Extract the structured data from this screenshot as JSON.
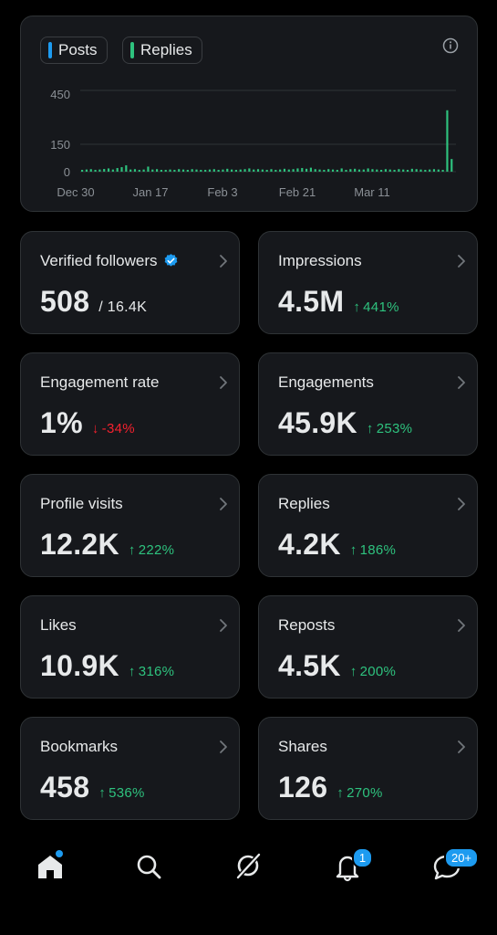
{
  "chart": {
    "legend": [
      {
        "label": "Posts",
        "color": "#1d9bf0"
      },
      {
        "label": "Replies",
        "color": "#2ec27e"
      }
    ],
    "y_ticks": [
      "450",
      "150",
      "0"
    ],
    "x_ticks": [
      "Dec 30",
      "Jan 17",
      "Feb 3",
      "Feb 21",
      "Mar 11"
    ]
  },
  "chart_data": {
    "type": "bar",
    "ylim": [
      0,
      450
    ],
    "grid": true,
    "series": [
      {
        "name": "Posts",
        "values": [
          0,
          0,
          0,
          0,
          0,
          0,
          0,
          0,
          0,
          0,
          0,
          0,
          0,
          0,
          0,
          0,
          0,
          0,
          0,
          0,
          0,
          0,
          0,
          0,
          0,
          0,
          0,
          0,
          0,
          0,
          0,
          0,
          0,
          0,
          0,
          0,
          0,
          0,
          0,
          0,
          0,
          0,
          0,
          0,
          0,
          0,
          0,
          0,
          0,
          0,
          0,
          0,
          0,
          0,
          0,
          0,
          0,
          0,
          0,
          0,
          0,
          0,
          0,
          0,
          0,
          0,
          0,
          0,
          0,
          0,
          0,
          0,
          0,
          0,
          0,
          0,
          0,
          0,
          0,
          0,
          0,
          0,
          0,
          0,
          0
        ]
      },
      {
        "name": "Replies",
        "values": [
          10,
          12,
          14,
          10,
          12,
          15,
          18,
          12,
          20,
          25,
          35,
          12,
          14,
          10,
          12,
          28,
          12,
          14,
          10,
          10,
          12,
          10,
          14,
          12,
          10,
          14,
          12,
          10,
          10,
          12,
          14,
          10,
          12,
          16,
          12,
          10,
          12,
          14,
          18,
          12,
          14,
          12,
          10,
          14,
          10,
          12,
          16,
          12,
          14,
          18,
          20,
          16,
          22,
          14,
          12,
          10,
          14,
          12,
          10,
          18,
          10,
          14,
          16,
          12,
          12,
          18,
          14,
          12,
          10,
          14,
          12,
          10,
          14,
          12,
          10,
          16,
          14,
          12,
          10,
          12,
          14,
          12,
          10,
          340,
          70
        ]
      }
    ]
  },
  "stats": [
    {
      "label": "Verified followers",
      "value": "508",
      "sub": "/ 16.4K",
      "verified": true
    },
    {
      "label": "Impressions",
      "value": "4.5M",
      "change": "441%",
      "dir": "up"
    },
    {
      "label": "Engagement rate",
      "value": "1%",
      "change": "-34%",
      "dir": "down"
    },
    {
      "label": "Engagements",
      "value": "45.9K",
      "change": "253%",
      "dir": "up"
    },
    {
      "label": "Profile visits",
      "value": "12.2K",
      "change": "222%",
      "dir": "up"
    },
    {
      "label": "Replies",
      "value": "4.2K",
      "change": "186%",
      "dir": "up"
    },
    {
      "label": "Likes",
      "value": "10.9K",
      "change": "316%",
      "dir": "up"
    },
    {
      "label": "Reposts",
      "value": "4.5K",
      "change": "200%",
      "dir": "up"
    },
    {
      "label": "Bookmarks",
      "value": "458",
      "change": "536%",
      "dir": "up"
    },
    {
      "label": "Shares",
      "value": "126",
      "change": "270%",
      "dir": "up"
    }
  ],
  "nav": {
    "items": [
      {
        "name": "home",
        "icon": "home-icon"
      },
      {
        "name": "search",
        "icon": "search-icon"
      },
      {
        "name": "grok",
        "icon": "grok-icon"
      },
      {
        "name": "notifications",
        "icon": "bell-icon"
      },
      {
        "name": "messages",
        "icon": "messages-icon"
      }
    ],
    "notifications_badge": "1",
    "messages_badge": "20+"
  },
  "colors": {
    "accent": "#1d9bf0",
    "up": "#2ec27e",
    "down": "#f4212e",
    "card": "#16181c"
  }
}
